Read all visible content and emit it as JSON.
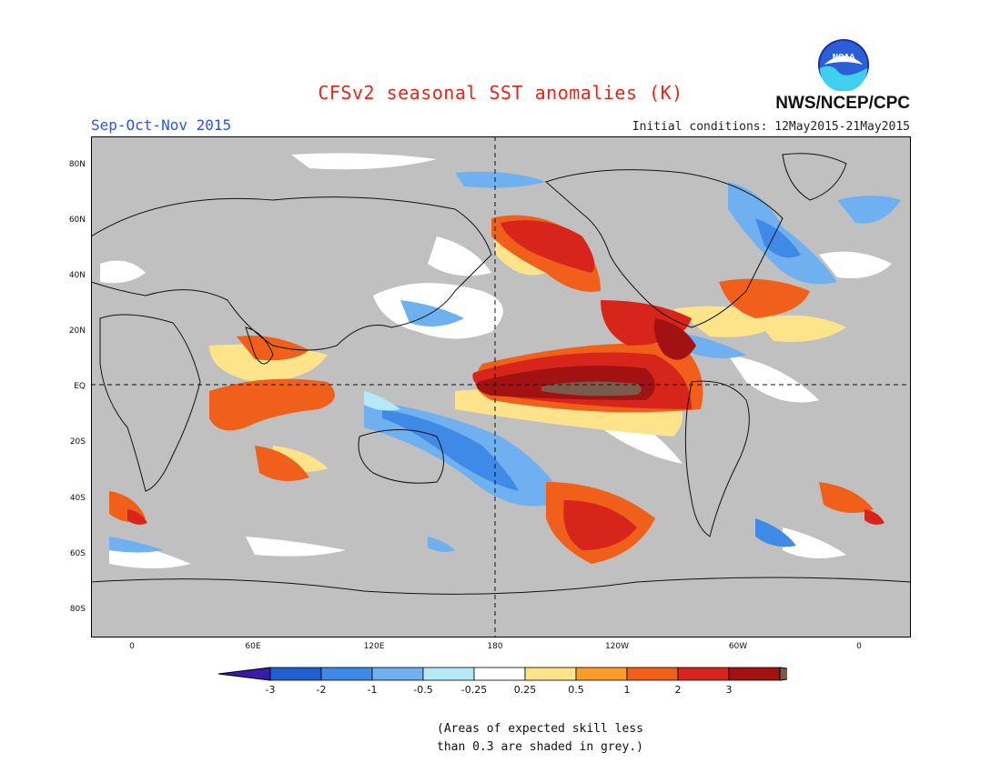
{
  "title": "CFSv2 seasonal SST anomalies (K)",
  "period": "Sep-Oct-Nov 2015",
  "initial_conditions": "Initial conditions: 12May2015-21May2015",
  "agency": "NWS/NCEP/CPC",
  "logo_text": "NOAA",
  "lat_labels": [
    "80N",
    "60N",
    "40N",
    "20N",
    "EQ",
    "20S",
    "40S",
    "60S",
    "80S"
  ],
  "lon_labels": [
    "0",
    "60E",
    "120E",
    "180",
    "120W",
    "60W",
    "0"
  ],
  "colorbar": {
    "labels": [
      "-3",
      "-2",
      "-1",
      "-0.5",
      "-0.25",
      "0.25",
      "0.5",
      "1",
      "2",
      "3"
    ],
    "colors": [
      "#3a1aa8",
      "#1e5fd3",
      "#3f8ae6",
      "#6fb0f0",
      "#b4e9f5",
      "#ffffff",
      "#fde38a",
      "#fc9a2a",
      "#f0601a",
      "#d8251b",
      "#a31212",
      "#7a5a4a"
    ]
  },
  "note_lines": [
    "(Areas of expected skill less",
    "than 0.3 are shaded in grey.)"
  ],
  "map_colors": {
    "grey": "#c0c0c0",
    "ocean_white": "#ffffff"
  }
}
